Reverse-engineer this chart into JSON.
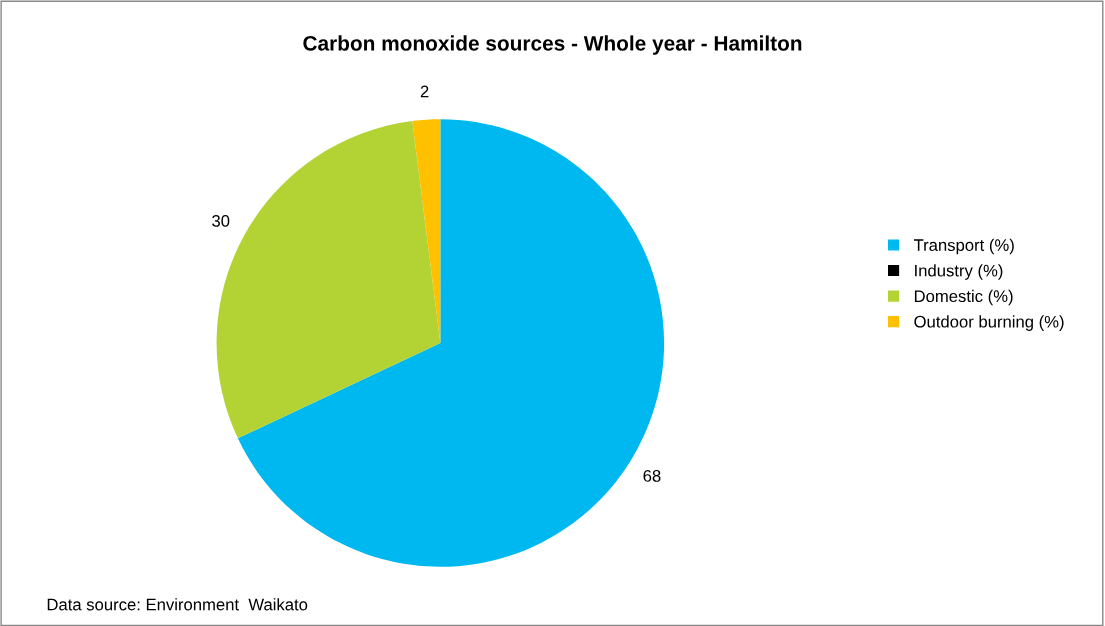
{
  "chart_data": {
    "type": "pie",
    "title": "Carbon monoxide sources - Whole year - Hamilton",
    "categories": [
      "Transport (%)",
      "Industry (%)",
      "Domestic (%)",
      "Outdoor burning (%)"
    ],
    "values": [
      68,
      0,
      30,
      2
    ],
    "colors": [
      "#00b8f0",
      "#000000",
      "#b3d334",
      "#ffc000"
    ],
    "value_labels": [
      "68",
      null,
      "30",
      "2"
    ],
    "legend": "right",
    "annotations": [
      "Data source: Environment  Waikato"
    ]
  }
}
